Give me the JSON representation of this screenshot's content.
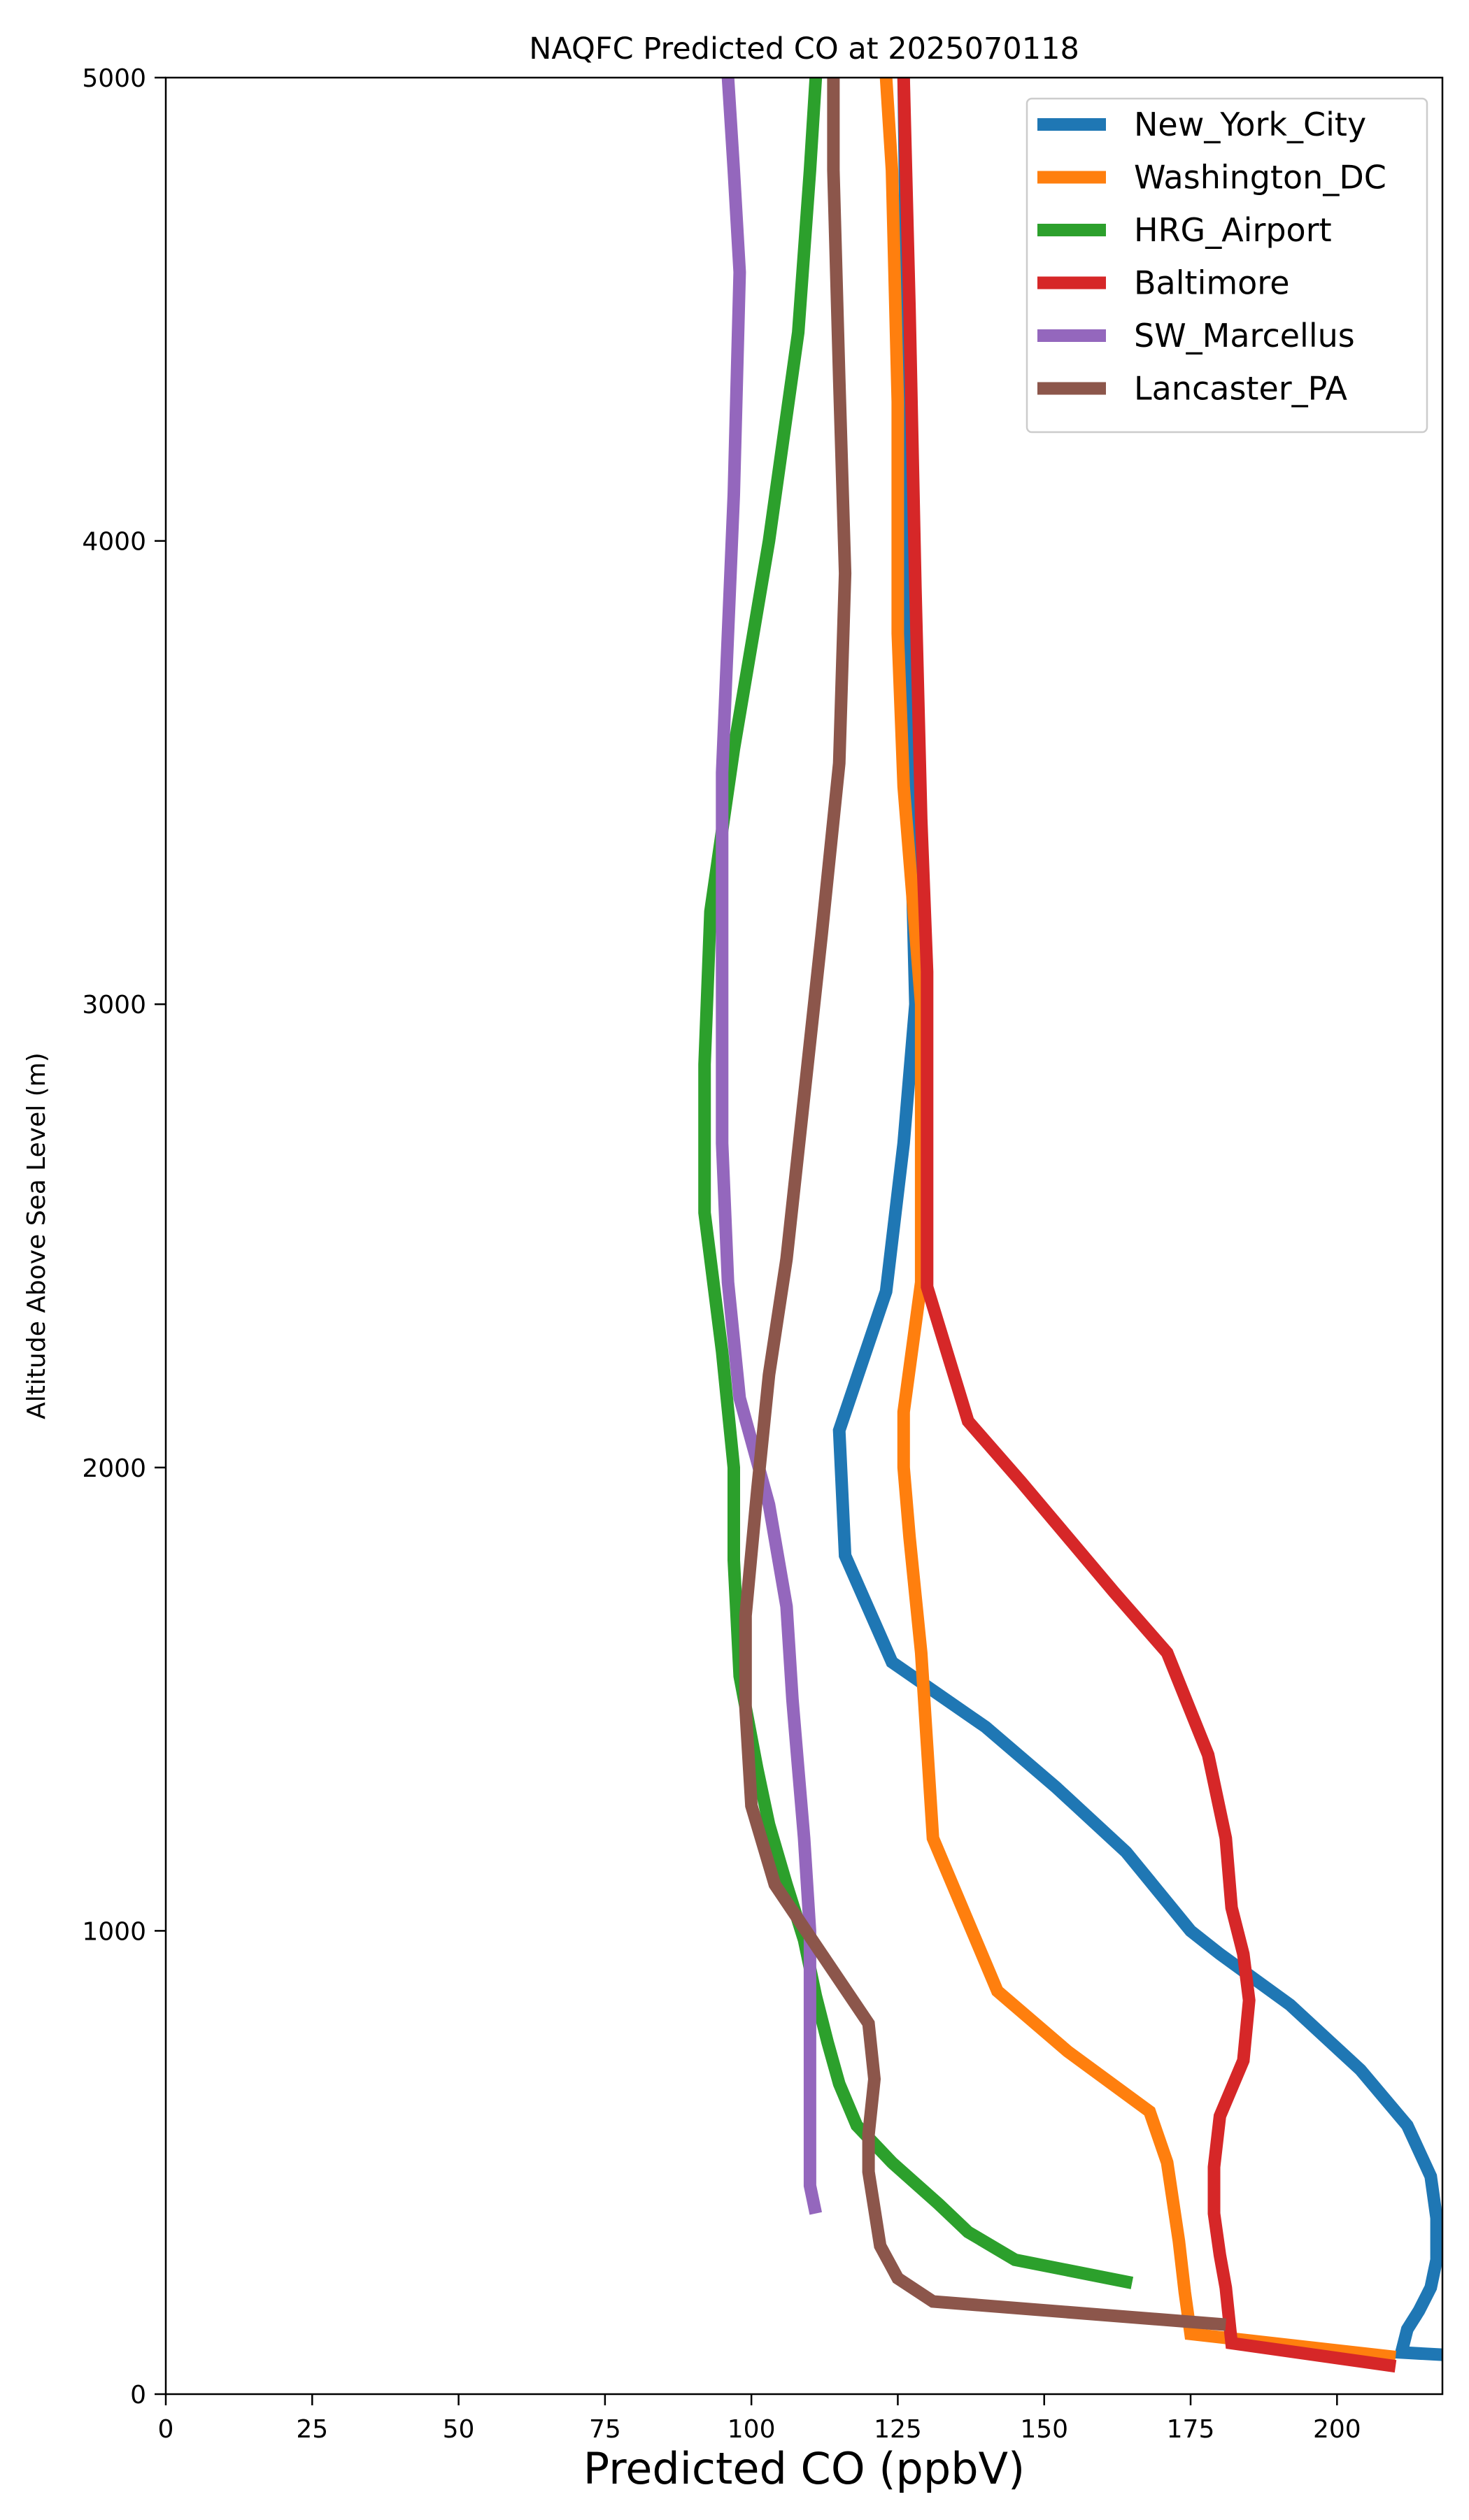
{
  "chart_data": {
    "type": "line",
    "title": "NAQFC Predicted CO at 2025070118",
    "xlabel": "Predicted CO (ppbV)",
    "ylabel": "Altitude Above Sea Level (m)",
    "xlim": [
      0,
      218
    ],
    "ylim": [
      0,
      5000
    ],
    "xticks": [
      0,
      25,
      50,
      75,
      100,
      125,
      150,
      175,
      200
    ],
    "yticks": [
      0,
      1000,
      2000,
      3000,
      4000,
      5000
    ],
    "grid": false,
    "legend": "top-right",
    "series": [
      {
        "name": "New_York_City",
        "color": "#1f77b4",
        "points": [
          [
            218,
            85
          ],
          [
            211,
            90
          ],
          [
            212,
            140
          ],
          [
            214,
            180
          ],
          [
            216,
            230
          ],
          [
            217,
            290
          ],
          [
            217,
            380
          ],
          [
            216,
            470
          ],
          [
            212,
            580
          ],
          [
            204,
            700
          ],
          [
            192,
            840
          ],
          [
            180,
            950
          ],
          [
            175,
            1000
          ],
          [
            164,
            1170
          ],
          [
            152,
            1310
          ],
          [
            140,
            1440
          ],
          [
            124,
            1580
          ],
          [
            116,
            1810
          ],
          [
            115,
            2080
          ],
          [
            123,
            2380
          ],
          [
            126,
            2700
          ],
          [
            128,
            3000
          ],
          [
            127,
            3500
          ],
          [
            127,
            4000
          ],
          [
            126,
            5000
          ]
        ]
      },
      {
        "name": "Washington_DC",
        "color": "#ff7f0e",
        "points": [
          [
            210,
            80
          ],
          [
            175,
            130
          ],
          [
            174,
            220
          ],
          [
            173,
            330
          ],
          [
            171,
            500
          ],
          [
            168,
            610
          ],
          [
            154,
            740
          ],
          [
            142,
            870
          ],
          [
            131,
            1200
          ],
          [
            130,
            1400
          ],
          [
            129,
            1600
          ],
          [
            127,
            1850
          ],
          [
            126,
            2000
          ],
          [
            126,
            2120
          ],
          [
            129,
            2400
          ],
          [
            129,
            2700
          ],
          [
            129,
            3000
          ],
          [
            126,
            3470
          ],
          [
            125,
            3800
          ],
          [
            125,
            4300
          ],
          [
            124,
            4800
          ],
          [
            123,
            5000
          ]
        ]
      },
      {
        "name": "HRG_Airport",
        "color": "#2ca02c",
        "points": [
          [
            165,
            240
          ],
          [
            145,
            290
          ],
          [
            137,
            350
          ],
          [
            132,
            410
          ],
          [
            124,
            500
          ],
          [
            118,
            580
          ],
          [
            115,
            670
          ],
          [
            113,
            760
          ],
          [
            111,
            860
          ],
          [
            109,
            980
          ],
          [
            106,
            1100
          ],
          [
            103,
            1230
          ],
          [
            101,
            1350
          ],
          [
            98,
            1550
          ],
          [
            97,
            1800
          ],
          [
            97,
            2000
          ],
          [
            95,
            2250
          ],
          [
            92,
            2550
          ],
          [
            92,
            2870
          ],
          [
            93,
            3200
          ],
          [
            97,
            3550
          ],
          [
            103,
            4000
          ],
          [
            108,
            4450
          ],
          [
            110,
            4800
          ],
          [
            111,
            5000
          ]
        ]
      },
      {
        "name": "Baltimore",
        "color": "#d62728",
        "points": [
          [
            210,
            60
          ],
          [
            182,
            110
          ],
          [
            181,
            230
          ],
          [
            180,
            300
          ],
          [
            179,
            390
          ],
          [
            179,
            490
          ],
          [
            180,
            600
          ],
          [
            184,
            720
          ],
          [
            185,
            850
          ],
          [
            184,
            950
          ],
          [
            182,
            1050
          ],
          [
            181,
            1200
          ],
          [
            178,
            1380
          ],
          [
            171,
            1600
          ],
          [
            162,
            1730
          ],
          [
            154,
            1850
          ],
          [
            146,
            1970
          ],
          [
            137,
            2100
          ],
          [
            130,
            2390
          ],
          [
            130,
            3070
          ],
          [
            129,
            3400
          ],
          [
            128,
            3900
          ],
          [
            127,
            4500
          ],
          [
            126,
            5000
          ]
        ]
      },
      {
        "name": "SW_Marcellus",
        "color": "#9467bd",
        "points": [
          [
            111,
            390
          ],
          [
            110,
            450
          ],
          [
            110,
            700
          ],
          [
            110,
            1000
          ],
          [
            109,
            1200
          ],
          [
            108,
            1350
          ],
          [
            107,
            1500
          ],
          [
            106,
            1700
          ],
          [
            103,
            1920
          ],
          [
            98,
            2150
          ],
          [
            96,
            2400
          ],
          [
            95,
            2700
          ],
          [
            95,
            3000
          ],
          [
            95,
            3500
          ],
          [
            97,
            4100
          ],
          [
            98,
            4580
          ],
          [
            97,
            4800
          ],
          [
            96,
            5000
          ]
        ]
      },
      {
        "name": "Lancaster_PA",
        "color": "#8c564b",
        "points": [
          [
            181,
            150
          ],
          [
            131,
            200
          ],
          [
            125,
            250
          ],
          [
            122,
            320
          ],
          [
            121,
            400
          ],
          [
            120,
            480
          ],
          [
            120,
            560
          ],
          [
            121,
            680
          ],
          [
            120,
            800
          ],
          [
            112,
            950
          ],
          [
            104,
            1100
          ],
          [
            100,
            1270
          ],
          [
            99,
            1480
          ],
          [
            99,
            1680
          ],
          [
            101,
            1950
          ],
          [
            103,
            2200
          ],
          [
            106,
            2450
          ],
          [
            109,
            2800
          ],
          [
            112,
            3150
          ],
          [
            115,
            3520
          ],
          [
            116,
            3930
          ],
          [
            115,
            4350
          ],
          [
            114,
            4800
          ],
          [
            114,
            5000
          ]
        ]
      }
    ]
  }
}
